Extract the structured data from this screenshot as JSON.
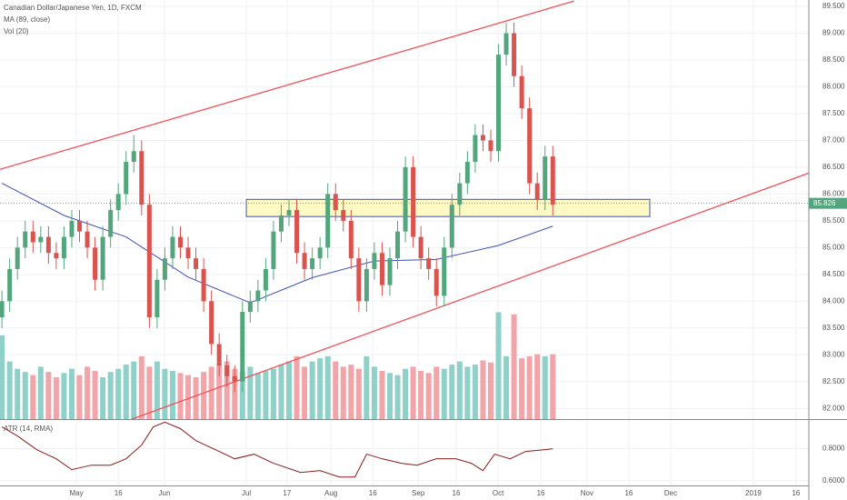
{
  "chart_data": [
    {
      "type": "candlestick",
      "title": "Canadian Dollar/Japanese Yen, 1D, FXCM",
      "ma_label": "MA (89, close)",
      "vol_label": "Vol (20)",
      "up_color": "#53a57e",
      "down_color": "#d9534f",
      "vol_up_color": "#8fd0c8",
      "vol_down_color": "#f2a5a8",
      "x": [
        0,
        2,
        4,
        6,
        8,
        10,
        12,
        14,
        16,
        18,
        20,
        22,
        24,
        26,
        28,
        30,
        32,
        34,
        36,
        38,
        40,
        42,
        44,
        46,
        48,
        50,
        52,
        54,
        56,
        58,
        60,
        62,
        64,
        66,
        68,
        70,
        72,
        74,
        76,
        78,
        80,
        82,
        84,
        86,
        88,
        90,
        92,
        94,
        96,
        98,
        100,
        102,
        104,
        106,
        108,
        110,
        112,
        114,
        116,
        118,
        120,
        122,
        124,
        126,
        128,
        130,
        132,
        134,
        136,
        138,
        140,
        142
      ],
      "open": [
        83.7,
        84.0,
        84.6,
        85.0,
        85.3,
        85.1,
        85.2,
        84.9,
        84.8,
        85.2,
        85.5,
        85.3,
        85.0,
        84.4,
        85.2,
        85.7,
        86.0,
        86.6,
        86.8,
        85.8,
        83.7,
        84.4,
        84.8,
        85.2,
        85.0,
        84.8,
        84.6,
        84.0,
        83.2,
        82.8,
        82.6,
        82.5,
        83.8,
        84.0,
        84.2,
        84.6,
        85.3,
        85.6,
        85.7,
        84.9,
        84.6,
        84.8,
        85.0,
        86.0,
        85.7,
        85.5,
        84.8,
        84.0,
        84.6,
        84.9,
        84.3,
        84.8,
        85.3,
        86.5,
        85.2,
        84.8,
        84.6,
        84.1,
        85.0,
        85.8,
        86.2,
        86.6,
        87.1,
        87.0,
        86.8,
        88.6,
        89.0,
        88.2,
        87.6,
        86.2,
        85.9,
        86.7
      ],
      "high": [
        84.2,
        84.8,
        85.2,
        85.5,
        85.5,
        85.4,
        85.4,
        85.1,
        85.4,
        85.7,
        85.7,
        85.5,
        85.2,
        85.4,
        85.9,
        86.2,
        86.8,
        87.1,
        87.0,
        86.0,
        84.6,
        85.0,
        85.4,
        85.4,
        85.2,
        85.0,
        84.8,
        84.2,
        83.4,
        83.0,
        82.8,
        84.0,
        84.2,
        84.4,
        84.8,
        85.5,
        85.8,
        85.9,
        85.9,
        85.1,
        85.0,
        85.2,
        86.2,
        86.2,
        85.9,
        85.7,
        85.0,
        84.8,
        85.1,
        85.1,
        85.0,
        85.5,
        86.7,
        86.7,
        85.4,
        85.0,
        84.8,
        85.2,
        86.0,
        86.4,
        86.8,
        87.3,
        87.3,
        87.2,
        88.8,
        89.2,
        89.2,
        88.4,
        87.8,
        86.4,
        86.9,
        86.9
      ],
      "low": [
        83.5,
        83.8,
        84.4,
        84.8,
        84.9,
        84.9,
        84.7,
        84.6,
        84.6,
        85.0,
        85.1,
        84.8,
        84.2,
        84.2,
        85.0,
        85.5,
        85.8,
        86.4,
        85.6,
        83.5,
        83.5,
        84.2,
        84.6,
        84.8,
        84.6,
        84.4,
        83.8,
        83.0,
        82.6,
        82.4,
        82.3,
        82.3,
        83.6,
        83.8,
        84.0,
        84.4,
        85.1,
        85.4,
        84.7,
        84.4,
        84.4,
        84.6,
        84.8,
        85.5,
        85.3,
        84.6,
        83.8,
        83.8,
        84.4,
        84.1,
        84.1,
        84.6,
        85.1,
        85.0,
        84.6,
        84.4,
        83.9,
        83.9,
        84.8,
        85.6,
        86.0,
        86.4,
        86.8,
        86.6,
        86.6,
        88.4,
        88.0,
        87.4,
        86.0,
        85.7,
        85.7,
        85.6
      ],
      "close": [
        84.0,
        84.6,
        85.0,
        85.3,
        85.1,
        85.2,
        84.9,
        84.8,
        85.2,
        85.5,
        85.3,
        85.0,
        84.4,
        85.2,
        85.7,
        86.0,
        86.6,
        86.8,
        85.8,
        83.7,
        84.4,
        84.8,
        85.2,
        85.0,
        84.8,
        84.6,
        84.0,
        83.2,
        82.8,
        82.6,
        82.5,
        83.8,
        84.0,
        84.2,
        84.6,
        85.3,
        85.6,
        85.7,
        84.9,
        84.6,
        84.8,
        85.0,
        86.0,
        85.7,
        85.5,
        84.8,
        84.0,
        84.6,
        84.9,
        84.3,
        84.8,
        85.3,
        86.5,
        85.2,
        84.8,
        84.6,
        84.1,
        85.0,
        85.8,
        86.2,
        86.6,
        87.1,
        87.0,
        86.8,
        88.6,
        89.0,
        88.2,
        87.6,
        86.2,
        85.9,
        86.7,
        85.8
      ],
      "volume": [
        80,
        55,
        48,
        45,
        42,
        50,
        45,
        40,
        44,
        48,
        42,
        50,
        46,
        40,
        45,
        48,
        52,
        55,
        60,
        50,
        55,
        48,
        46,
        44,
        42,
        40,
        45,
        50,
        52,
        55,
        48,
        45,
        50,
        44,
        46,
        48,
        52,
        55,
        60,
        50,
        55,
        58,
        60,
        55,
        50,
        52,
        48,
        60,
        50,
        46,
        44,
        42,
        48,
        50,
        46,
        44,
        50,
        48,
        52,
        55,
        50,
        52,
        56,
        54,
        102,
        60,
        100,
        58,
        60,
        62,
        60,
        62
      ],
      "vlim": [
        0,
        400
      ],
      "ma": {
        "color": "#3f51b5",
        "x": [
          0,
          16,
          32,
          48,
          64,
          80,
          96,
          112,
          128,
          142
        ],
        "values": [
          86.2,
          85.6,
          85.2,
          84.45,
          83.97,
          84.44,
          84.75,
          84.78,
          85.04,
          85.4
        ]
      },
      "trendlines": [
        {
          "color": "#f0525a",
          "x": [
            -0.5,
            147.5
          ],
          "values": [
            86.46,
            89.6
          ]
        },
        {
          "color": "#f0525a",
          "x": [
            33.5,
            208
          ],
          "values": [
            81.8,
            86.39
          ]
        }
      ],
      "zone": {
        "x": [
          63,
          167
        ],
        "values": [
          85.58,
          85.9
        ],
        "color": "#fff9c4",
        "border": "#3f51b5"
      },
      "last_price": 85.826,
      "last_color": "#53a57e",
      "xlim": [
        -0.5,
        208
      ],
      "xticks": [
        {
          "value": 19.2,
          "label": "May"
        },
        {
          "value": 30,
          "label": "16"
        },
        {
          "value": 41.9,
          "label": "Jun"
        },
        {
          "value": 63,
          "label": "Jul"
        },
        {
          "value": 73.5,
          "label": "17"
        },
        {
          "value": 84.8,
          "label": "Aug"
        },
        {
          "value": 95.6,
          "label": "16"
        },
        {
          "value": 107.3,
          "label": "Sep"
        },
        {
          "value": 117.1,
          "label": "16"
        },
        {
          "value": 127.9,
          "label": "Oct"
        },
        {
          "value": 138.9,
          "label": "16"
        },
        {
          "value": 150.8,
          "label": "Nov"
        },
        {
          "value": 161.6,
          "label": "16"
        },
        {
          "value": 172.4,
          "label": "Dec"
        },
        {
          "value": 193.7,
          "label": "2019"
        },
        {
          "value": 204.7,
          "label": "16"
        }
      ],
      "ylim": [
        81.8,
        89.62
      ],
      "yticks": [
        {
          "value": 82,
          "label": "82.000"
        },
        {
          "value": 82.5,
          "label": "82.500"
        },
        {
          "value": 83,
          "label": "83.000"
        },
        {
          "value": 83.5,
          "label": "83.500"
        },
        {
          "value": 84,
          "label": "84.000"
        },
        {
          "value": 84.5,
          "label": "84.500"
        },
        {
          "value": 85,
          "label": "85.000"
        },
        {
          "value": 85.5,
          "label": "85.500"
        },
        {
          "value": 86,
          "label": "86.000"
        },
        {
          "value": 86.5,
          "label": "86.500"
        },
        {
          "value": 87,
          "label": "87.000"
        },
        {
          "value": 87.5,
          "label": "87.500"
        },
        {
          "value": 88,
          "label": "88.000"
        },
        {
          "value": 88.5,
          "label": "88.500"
        },
        {
          "value": 89,
          "label": "89.000"
        },
        {
          "value": 89.5,
          "label": "89.500"
        }
      ],
      "grid": true
    },
    {
      "type": "line",
      "title": "ATR (14, RMA)",
      "color": "#8b1a1a",
      "x": [
        0,
        4,
        9,
        14,
        18,
        23,
        28,
        32,
        36,
        39,
        42,
        46,
        50,
        56,
        60,
        65,
        70,
        77,
        82,
        87,
        91,
        94,
        98,
        103,
        107,
        112,
        117,
        121,
        124,
        127,
        131,
        135,
        140,
        142
      ],
      "values": [
        0.937,
        0.88,
        0.794,
        0.737,
        0.669,
        0.697,
        0.697,
        0.737,
        0.823,
        0.937,
        0.966,
        0.926,
        0.851,
        0.783,
        0.737,
        0.766,
        0.709,
        0.651,
        0.663,
        0.623,
        0.623,
        0.766,
        0.737,
        0.709,
        0.697,
        0.737,
        0.737,
        0.709,
        0.663,
        0.766,
        0.737,
        0.783,
        0.794,
        0.8
      ],
      "xlim": [
        -0.5,
        208
      ],
      "ylim": [
        0.57,
        0.98
      ],
      "yticks": [
        {
          "value": 0.8,
          "label": "0.8000"
        },
        {
          "value": 0.6,
          "label": "0.6000"
        }
      ],
      "grid": true
    }
  ]
}
